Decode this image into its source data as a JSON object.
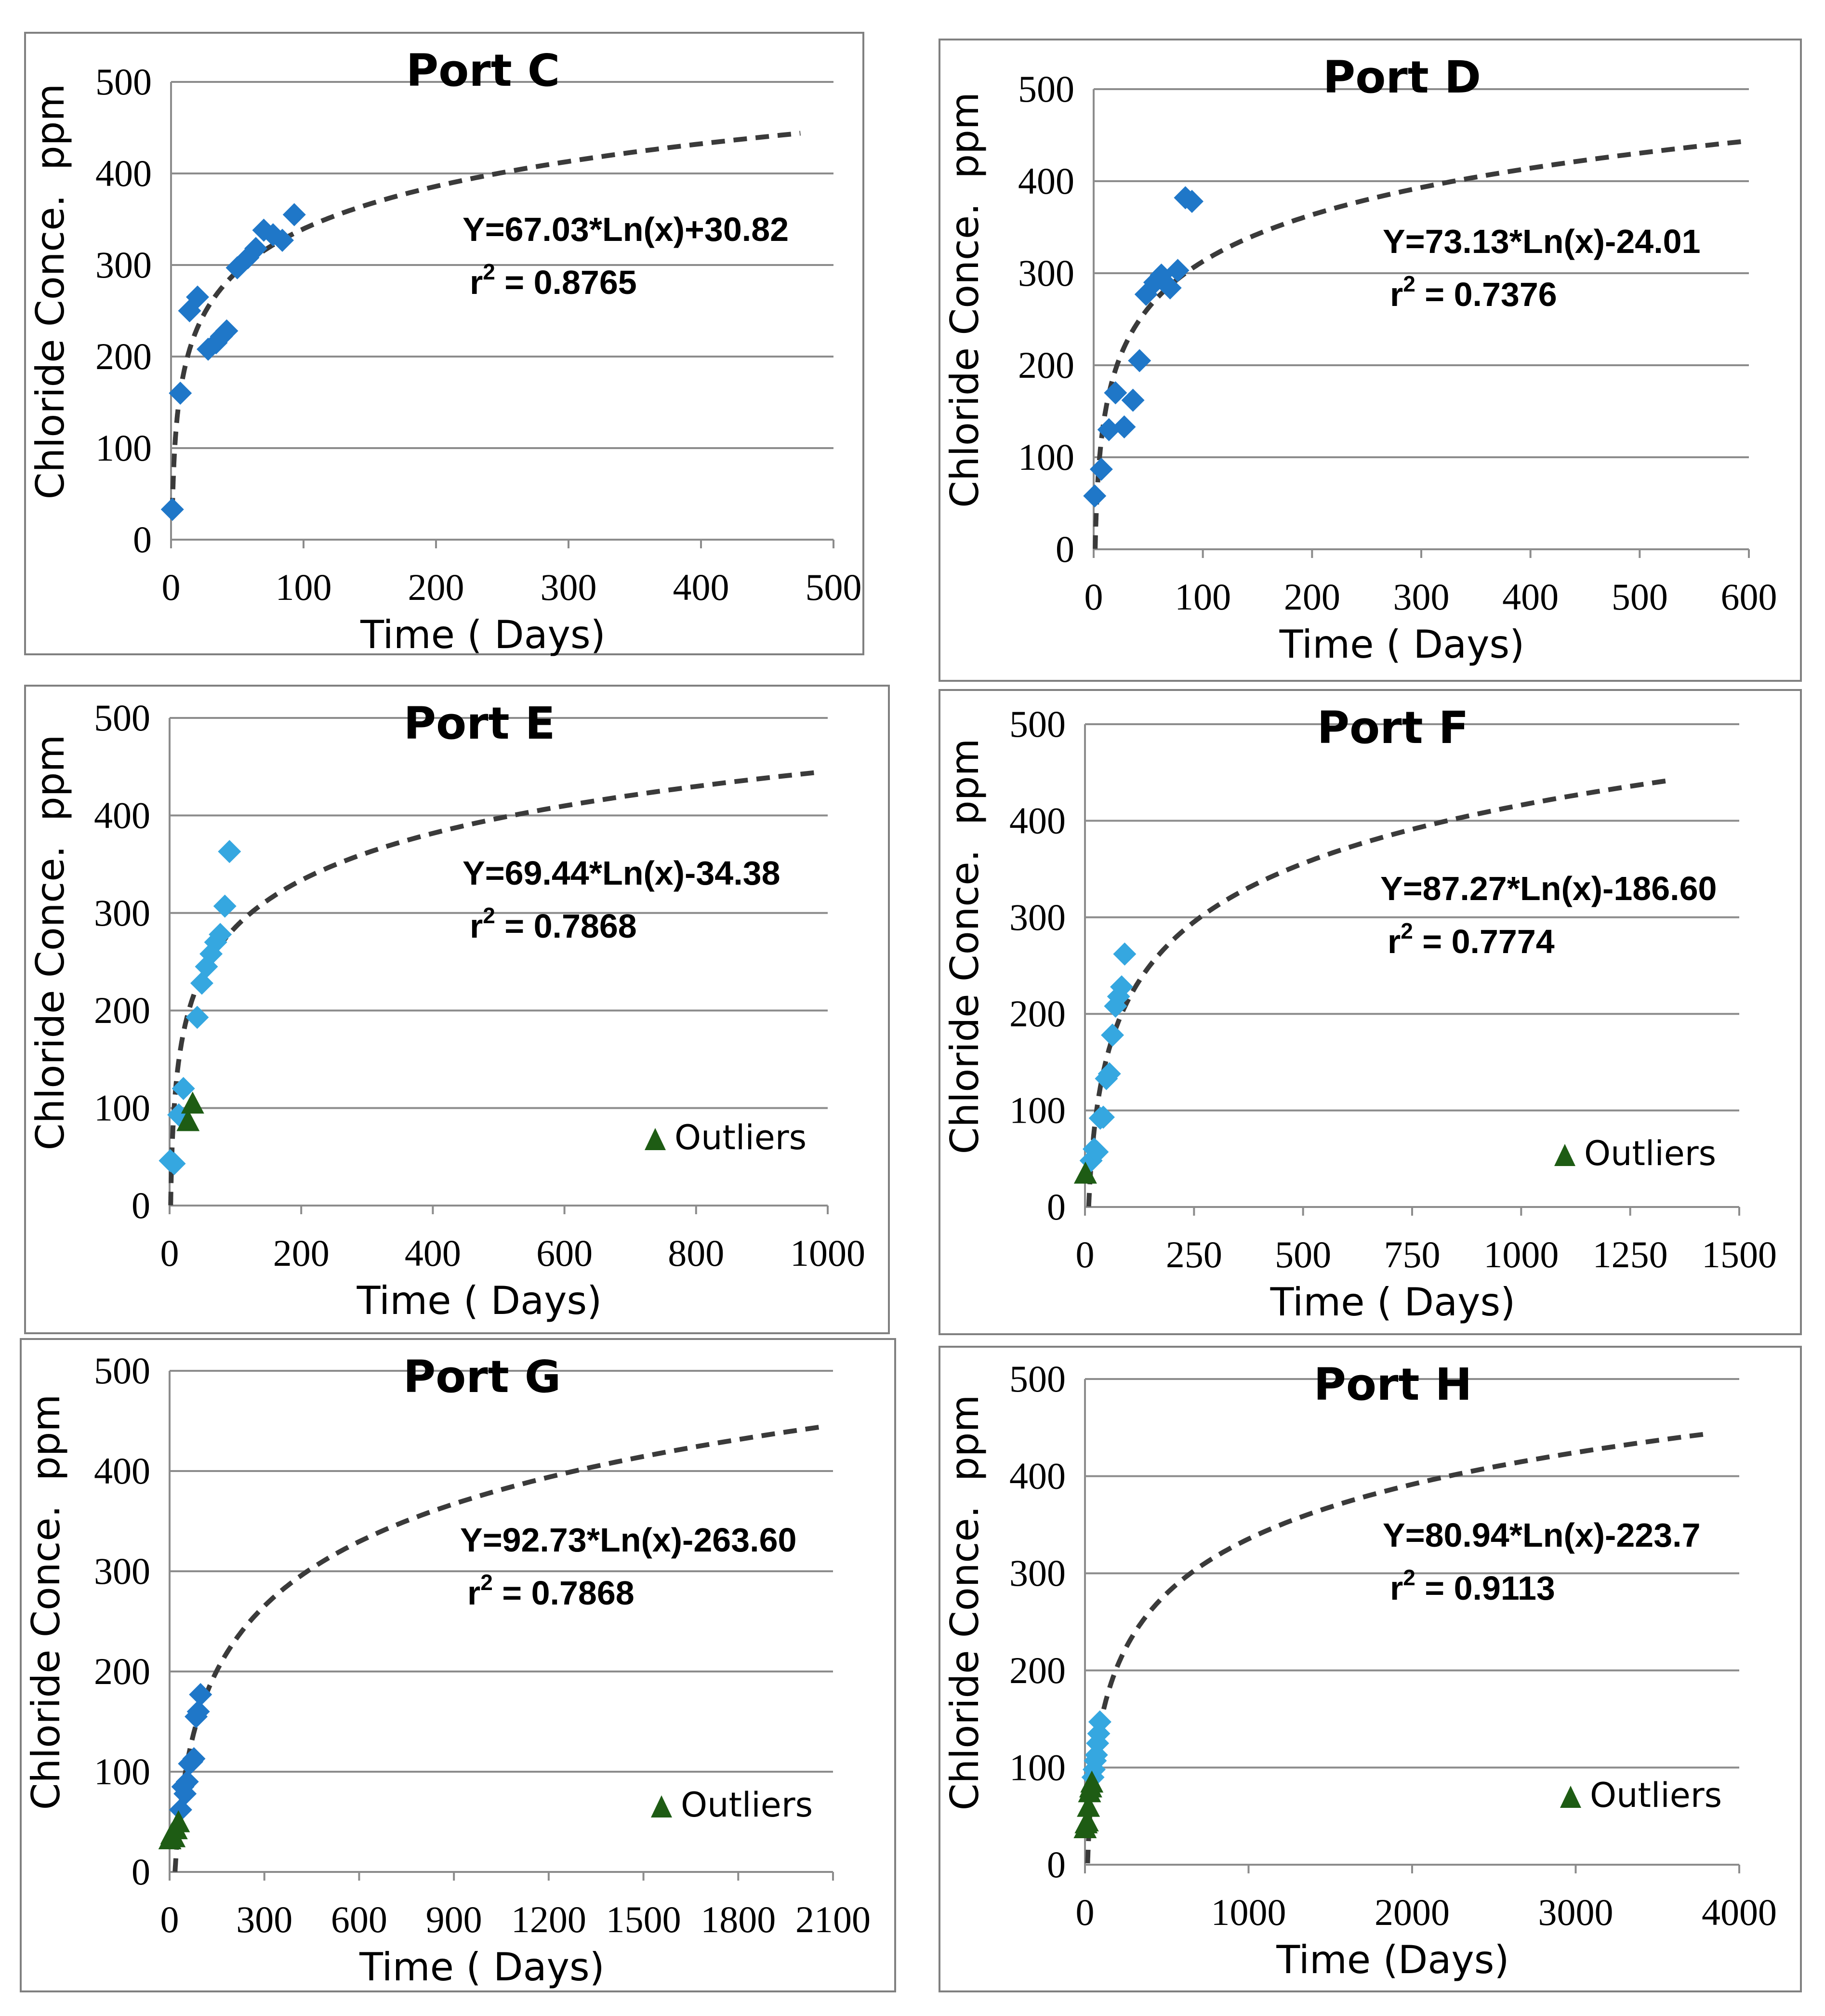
{
  "figure": {
    "layout": "3 rows x 2 columns of scatter plots with logarithmic trend lines"
  },
  "chart_data": [
    {
      "type": "scatter",
      "title": "Port C",
      "xlabel": "Time ( Days)",
      "ylabel": "Chloride Conce.  ppm",
      "xlim": [
        0,
        500
      ],
      "ylim": [
        0,
        500
      ],
      "xticks": [
        "0",
        "100",
        "200",
        "300",
        "400",
        "500"
      ],
      "yticks": [
        "0",
        "100",
        "200",
        "300",
        "400",
        "500"
      ],
      "trend": {
        "a": 67.03,
        "b": 30.82,
        "x_start": 1,
        "x_end": 475,
        "model": "a*ln(x)+b"
      },
      "equation": "Y=67.03*Ln(x)+30.82",
      "r2_prefix": "r",
      "r2_sup": "2",
      "r2_value": " = 0.8765",
      "series": [
        {
          "name": "data",
          "color": "#1f77c8",
          "marker": "diamond",
          "points": [
            [
              1,
              33
            ],
            [
              7,
              160
            ],
            [
              14,
              250
            ],
            [
              20,
              265
            ],
            [
              28,
              208
            ],
            [
              34,
              215
            ],
            [
              38,
              222
            ],
            [
              42,
              228
            ],
            [
              50,
              297
            ],
            [
              58,
              308
            ],
            [
              64,
              318
            ],
            [
              70,
              338
            ],
            [
              77,
              333
            ],
            [
              84,
              327
            ],
            [
              93,
              355
            ]
          ]
        }
      ]
    },
    {
      "type": "scatter",
      "title": "Port D",
      "xlabel": "Time ( Days)",
      "ylabel": "Chloride Conce.  ppm",
      "xlim": [
        0,
        600
      ],
      "ylim": [
        0,
        500
      ],
      "xticks": [
        "0",
        "100",
        "200",
        "300",
        "400",
        "500",
        "600"
      ],
      "yticks": [
        "0",
        "100",
        "200",
        "300",
        "400",
        "500"
      ],
      "trend": {
        "a": 73.13,
        "b": -24.01,
        "x_start": 1,
        "x_end": 600,
        "model": "a*ln(x)-b"
      },
      "equation": "Y=73.13*Ln(x)-24.01",
      "r2_prefix": "r",
      "r2_sup": "2",
      "r2_value": " = 0.7376",
      "series": [
        {
          "name": "data",
          "color": "#1f77c8",
          "marker": "diamond",
          "points": [
            [
              1,
              58
            ],
            [
              7,
              87
            ],
            [
              14,
              130
            ],
            [
              20,
              170
            ],
            [
              28,
              133
            ],
            [
              36,
              162
            ],
            [
              42,
              205
            ],
            [
              48,
              277
            ],
            [
              56,
              290
            ],
            [
              62,
              298
            ],
            [
              70,
              284
            ],
            [
              77,
              303
            ],
            [
              84,
              382
            ],
            [
              90,
              378
            ]
          ]
        }
      ]
    },
    {
      "type": "scatter",
      "title": "Port E",
      "xlabel": "Time ( Days)",
      "ylabel": "Chloride Conce.  ppm",
      "xlim": [
        0,
        1000
      ],
      "ylim": [
        0,
        500
      ],
      "xticks": [
        "0",
        "200",
        "400",
        "600",
        "800",
        "1000"
      ],
      "yticks": [
        "0",
        "100",
        "200",
        "300",
        "400",
        "500"
      ],
      "trend": {
        "a": 69.44,
        "b": -34.38,
        "x_start": 1,
        "x_end": 985,
        "model": "a*ln(x)-b"
      },
      "equation": "Y=69.44*Ln(x)-34.38",
      "r2_prefix": "r",
      "r2_sup": "2",
      "r2_value": " = 0.7868",
      "legend": {
        "marker": "triangle",
        "label": "Outliers",
        "position": "bottom-right"
      },
      "series": [
        {
          "name": "data",
          "color": "#35a7e0",
          "marker": "diamond",
          "points": [
            [
              1,
              46
            ],
            [
              7,
              43
            ],
            [
              14,
              93
            ],
            [
              21,
              120
            ],
            [
              42,
              193
            ],
            [
              49,
              228
            ],
            [
              56,
              245
            ],
            [
              63,
              258
            ],
            [
              70,
              270
            ],
            [
              77,
              278
            ],
            [
              84,
              307
            ],
            [
              91,
              363
            ]
          ]
        },
        {
          "name": "Outliers",
          "color": "#1e5c14",
          "marker": "triangle",
          "points": [
            [
              28,
              87
            ],
            [
              35,
              105
            ]
          ]
        }
      ]
    },
    {
      "type": "scatter",
      "title": "Port F",
      "xlabel": "Time ( Days)",
      "ylabel": "Chloride Conce.  ppm",
      "xlim": [
        0,
        1500
      ],
      "ylim": [
        0,
        500
      ],
      "xticks": [
        "0",
        "250",
        "500",
        "750",
        "1000",
        "1250",
        "1500"
      ],
      "yticks": [
        "0",
        "100",
        "200",
        "300",
        "400",
        "500"
      ],
      "trend": {
        "a": 87.27,
        "b": -186.6,
        "x_start": 1,
        "x_end": 1350,
        "model": "a*ln(x)-b"
      },
      "equation": "Y=87.27*Ln(x)-186.60",
      "r2_prefix": "r",
      "r2_sup": "2",
      "r2_value": " = 0.7774",
      "legend": {
        "marker": "triangle",
        "label": "Outliers",
        "position": "bottom-right"
      },
      "series": [
        {
          "name": "data",
          "color": "#35a7e0",
          "marker": "diamond",
          "points": [
            [
              14,
              48
            ],
            [
              21,
              60
            ],
            [
              28,
              57
            ],
            [
              35,
              92
            ],
            [
              42,
              93
            ],
            [
              49,
              133
            ],
            [
              56,
              138
            ],
            [
              63,
              178
            ],
            [
              70,
              208
            ],
            [
              77,
              218
            ],
            [
              84,
              228
            ],
            [
              91,
              262
            ]
          ]
        },
        {
          "name": "Outliers",
          "color": "#1e5c14",
          "marker": "triangle",
          "points": [
            [
              1,
              35
            ]
          ]
        }
      ]
    },
    {
      "type": "scatter",
      "title": "Port G",
      "xlabel": "Time ( Days)",
      "ylabel": "Chloride Conce.  ppm",
      "xlim": [
        0,
        2100
      ],
      "ylim": [
        0,
        500
      ],
      "xticks": [
        "0",
        "300",
        "600",
        "900",
        "1200",
        "1500",
        "1800",
        "2100"
      ],
      "yticks": [
        "0",
        "100",
        "200",
        "300",
        "400",
        "500"
      ],
      "trend": {
        "a": 92.73,
        "b": -263.6,
        "x_start": 1,
        "x_end": 2070,
        "model": "a*ln(x)-b"
      },
      "equation": "Y=92.73*Ln(x)-263.60",
      "r2_prefix": "r",
      "r2_sup": "2",
      "r2_value": " = 0.7868",
      "legend": {
        "marker": "triangle",
        "label": "Outliers",
        "position": "bottom-right"
      },
      "series": [
        {
          "name": "data",
          "color": "#1f77c8",
          "marker": "diamond",
          "points": [
            [
              35,
              62
            ],
            [
              42,
              85
            ],
            [
              49,
              78
            ],
            [
              56,
              90
            ],
            [
              63,
              108
            ],
            [
              70,
              110
            ],
            [
              77,
              113
            ],
            [
              84,
              155
            ],
            [
              91,
              160
            ],
            [
              98,
              177
            ]
          ]
        },
        {
          "name": "Outliers",
          "color": "#1e5c14",
          "marker": "triangle",
          "points": [
            [
              1,
              33
            ],
            [
              7,
              38
            ],
            [
              14,
              35
            ],
            [
              21,
              43
            ],
            [
              28,
              50
            ]
          ]
        }
      ]
    },
    {
      "type": "scatter",
      "title": "Port H",
      "xlabel": "Time (Days)",
      "ylabel": "Chloride Conce.  ppm",
      "xlim": [
        0,
        4000
      ],
      "ylim": [
        0,
        500
      ],
      "xticks": [
        "0",
        "1000",
        "2000",
        "3000",
        "4000"
      ],
      "yticks": [
        "0",
        "100",
        "200",
        "300",
        "400",
        "500"
      ],
      "trend": {
        "a": 80.94,
        "b": -223.7,
        "x_start": 1,
        "x_end": 3800,
        "model": "a*ln(x)-b"
      },
      "equation": "Y=80.94*Ln(x)-223.7",
      "r2_prefix": "r",
      "r2_sup": "2",
      "r2_value": " = 0.9113",
      "legend": {
        "marker": "triangle",
        "label": "Outliers",
        "position": "bottom-right"
      },
      "series": [
        {
          "name": "data",
          "color": "#35a7e0",
          "marker": "diamond",
          "points": [
            [
              49,
              90
            ],
            [
              56,
              98
            ],
            [
              63,
              107
            ],
            [
              70,
              113
            ],
            [
              77,
              125
            ],
            [
              84,
              135
            ],
            [
              91,
              147
            ]
          ]
        },
        {
          "name": "Outliers",
          "color": "#1e5c14",
          "marker": "triangle",
          "points": [
            [
              1,
              38
            ],
            [
              7,
              43
            ],
            [
              14,
              45
            ],
            [
              21,
              60
            ],
            [
              28,
              75
            ],
            [
              35,
              80
            ],
            [
              42,
              85
            ]
          ]
        }
      ]
    }
  ]
}
